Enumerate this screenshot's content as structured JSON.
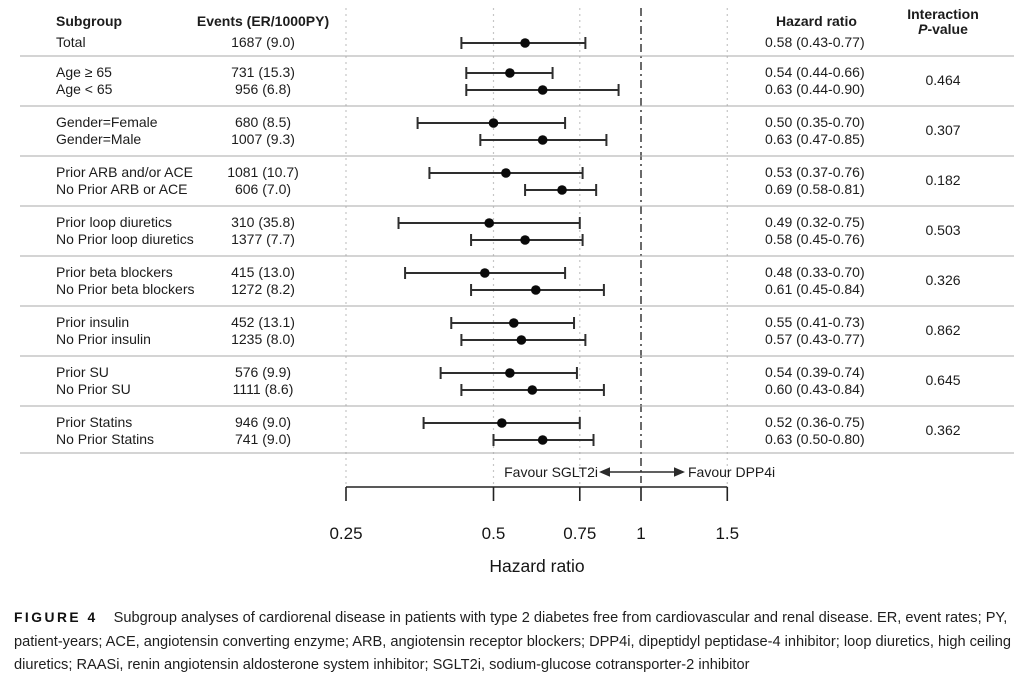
{
  "columns": {
    "subgroup": "Subgroup",
    "events": "Events (ER/1000PY)",
    "hazard_ratio": "Hazard ratio",
    "interaction_line1": "Interaction",
    "interaction_p_italic": "P",
    "interaction_p_rest": "-value"
  },
  "chart_data": {
    "type": "forest",
    "x_scale": "log",
    "xlabel": "Hazard ratio",
    "x_ticks": [
      0.25,
      0.5,
      0.75,
      1,
      1.5
    ],
    "x_range": [
      0.25,
      1.5
    ],
    "reference_line": 1,
    "grid": "vertical-dotted",
    "favour_left": "Favour SGLT2i",
    "favour_right": "Favour DPP4i",
    "groups": [
      {
        "p_value": "",
        "rows": [
          {
            "label": "Total",
            "events": "1687 (9.0)",
            "hr": 0.58,
            "ci_low": 0.43,
            "ci_high": 0.77,
            "hr_text": "0.58 (0.43-0.77)"
          }
        ]
      },
      {
        "p_value": "0.464",
        "rows": [
          {
            "label": "Age ≥ 65",
            "events": "731 (15.3)",
            "hr": 0.54,
            "ci_low": 0.44,
            "ci_high": 0.66,
            "hr_text": "0.54 (0.44-0.66)"
          },
          {
            "label": "Age < 65",
            "events": "956 (6.8)",
            "hr": 0.63,
            "ci_low": 0.44,
            "ci_high": 0.9,
            "hr_text": "0.63 (0.44-0.90)"
          }
        ]
      },
      {
        "p_value": "0.307",
        "rows": [
          {
            "label": "Gender=Female",
            "events": "680 (8.5)",
            "hr": 0.5,
            "ci_low": 0.35,
            "ci_high": 0.7,
            "hr_text": "0.50 (0.35-0.70)"
          },
          {
            "label": "Gender=Male",
            "events": "1007 (9.3)",
            "hr": 0.63,
            "ci_low": 0.47,
            "ci_high": 0.85,
            "hr_text": "0.63 (0.47-0.85)"
          }
        ]
      },
      {
        "p_value": "0.182",
        "rows": [
          {
            "label": "Prior ARB and/or ACE",
            "events": "1081 (10.7)",
            "hr": 0.53,
            "ci_low": 0.37,
            "ci_high": 0.76,
            "hr_text": "0.53 (0.37-0.76)"
          },
          {
            "label": "No Prior ARB or ACE",
            "events": "606 (7.0)",
            "hr": 0.69,
            "ci_low": 0.58,
            "ci_high": 0.81,
            "hr_text": "0.69 (0.58-0.81)"
          }
        ]
      },
      {
        "p_value": "0.503",
        "rows": [
          {
            "label": "Prior loop diuretics",
            "events": "310 (35.8)",
            "hr": 0.49,
            "ci_low": 0.32,
            "ci_high": 0.75,
            "hr_text": "0.49 (0.32-0.75)"
          },
          {
            "label": "No Prior loop diuretics",
            "events": "1377 (7.7)",
            "hr": 0.58,
            "ci_low": 0.45,
            "ci_high": 0.76,
            "hr_text": "0.58 (0.45-0.76)"
          }
        ]
      },
      {
        "p_value": "0.326",
        "rows": [
          {
            "label": "Prior beta blockers",
            "events": "415 (13.0)",
            "hr": 0.48,
            "ci_low": 0.33,
            "ci_high": 0.7,
            "hr_text": "0.48 (0.33-0.70)"
          },
          {
            "label": "No Prior beta blockers",
            "events": "1272 (8.2)",
            "hr": 0.61,
            "ci_low": 0.45,
            "ci_high": 0.84,
            "hr_text": "0.61 (0.45-0.84)"
          }
        ]
      },
      {
        "p_value": "0.862",
        "rows": [
          {
            "label": "Prior insulin",
            "events": "452 (13.1)",
            "hr": 0.55,
            "ci_low": 0.41,
            "ci_high": 0.73,
            "hr_text": "0.55 (0.41-0.73)"
          },
          {
            "label": "No Prior insulin",
            "events": "1235 (8.0)",
            "hr": 0.57,
            "ci_low": 0.43,
            "ci_high": 0.77,
            "hr_text": "0.57 (0.43-0.77)"
          }
        ]
      },
      {
        "p_value": "0.645",
        "rows": [
          {
            "label": "Prior SU",
            "events": "576 (9.9)",
            "hr": 0.54,
            "ci_low": 0.39,
            "ci_high": 0.74,
            "hr_text": "0.54 (0.39-0.74)"
          },
          {
            "label": "No Prior SU",
            "events": "1111 (8.6)",
            "hr": 0.6,
            "ci_low": 0.43,
            "ci_high": 0.84,
            "hr_text": "0.60 (0.43-0.84)"
          }
        ]
      },
      {
        "p_value": "0.362",
        "rows": [
          {
            "label": "Prior Statins",
            "events": "946 (9.0)",
            "hr": 0.52,
            "ci_low": 0.36,
            "ci_high": 0.75,
            "hr_text": "0.52 (0.36-0.75)"
          },
          {
            "label": "No Prior Statins",
            "events": "741 (9.0)",
            "hr": 0.63,
            "ci_low": 0.5,
            "ci_high": 0.8,
            "hr_text": "0.63 (0.50-0.80)"
          }
        ]
      }
    ]
  },
  "caption": {
    "label": "FIGURE 4",
    "text": "Subgroup analyses of cardiorenal disease in patients with type 2 diabetes free from cardiovascular and renal disease. ER, event rates; PY, patient-years; ACE, angiotensin converting enzyme; ARB, angiotensin receptor blockers; DPP4i, dipeptidyl peptidase-4 inhibitor; loop diuretics, high ceiling diuretics; RAASi, renin angiotensin aldosterone system inhibitor; SGLT2i, sodium-glucose cotransporter-2 inhibitor"
  },
  "colors": {
    "text": "#1c1c1c",
    "marker": "#0a0a0a",
    "ci_line": "#2e2e2e",
    "separator": "#a8a8a8",
    "gridline": "#c6c6c6",
    "reference_line": "#2b2b2b"
  }
}
